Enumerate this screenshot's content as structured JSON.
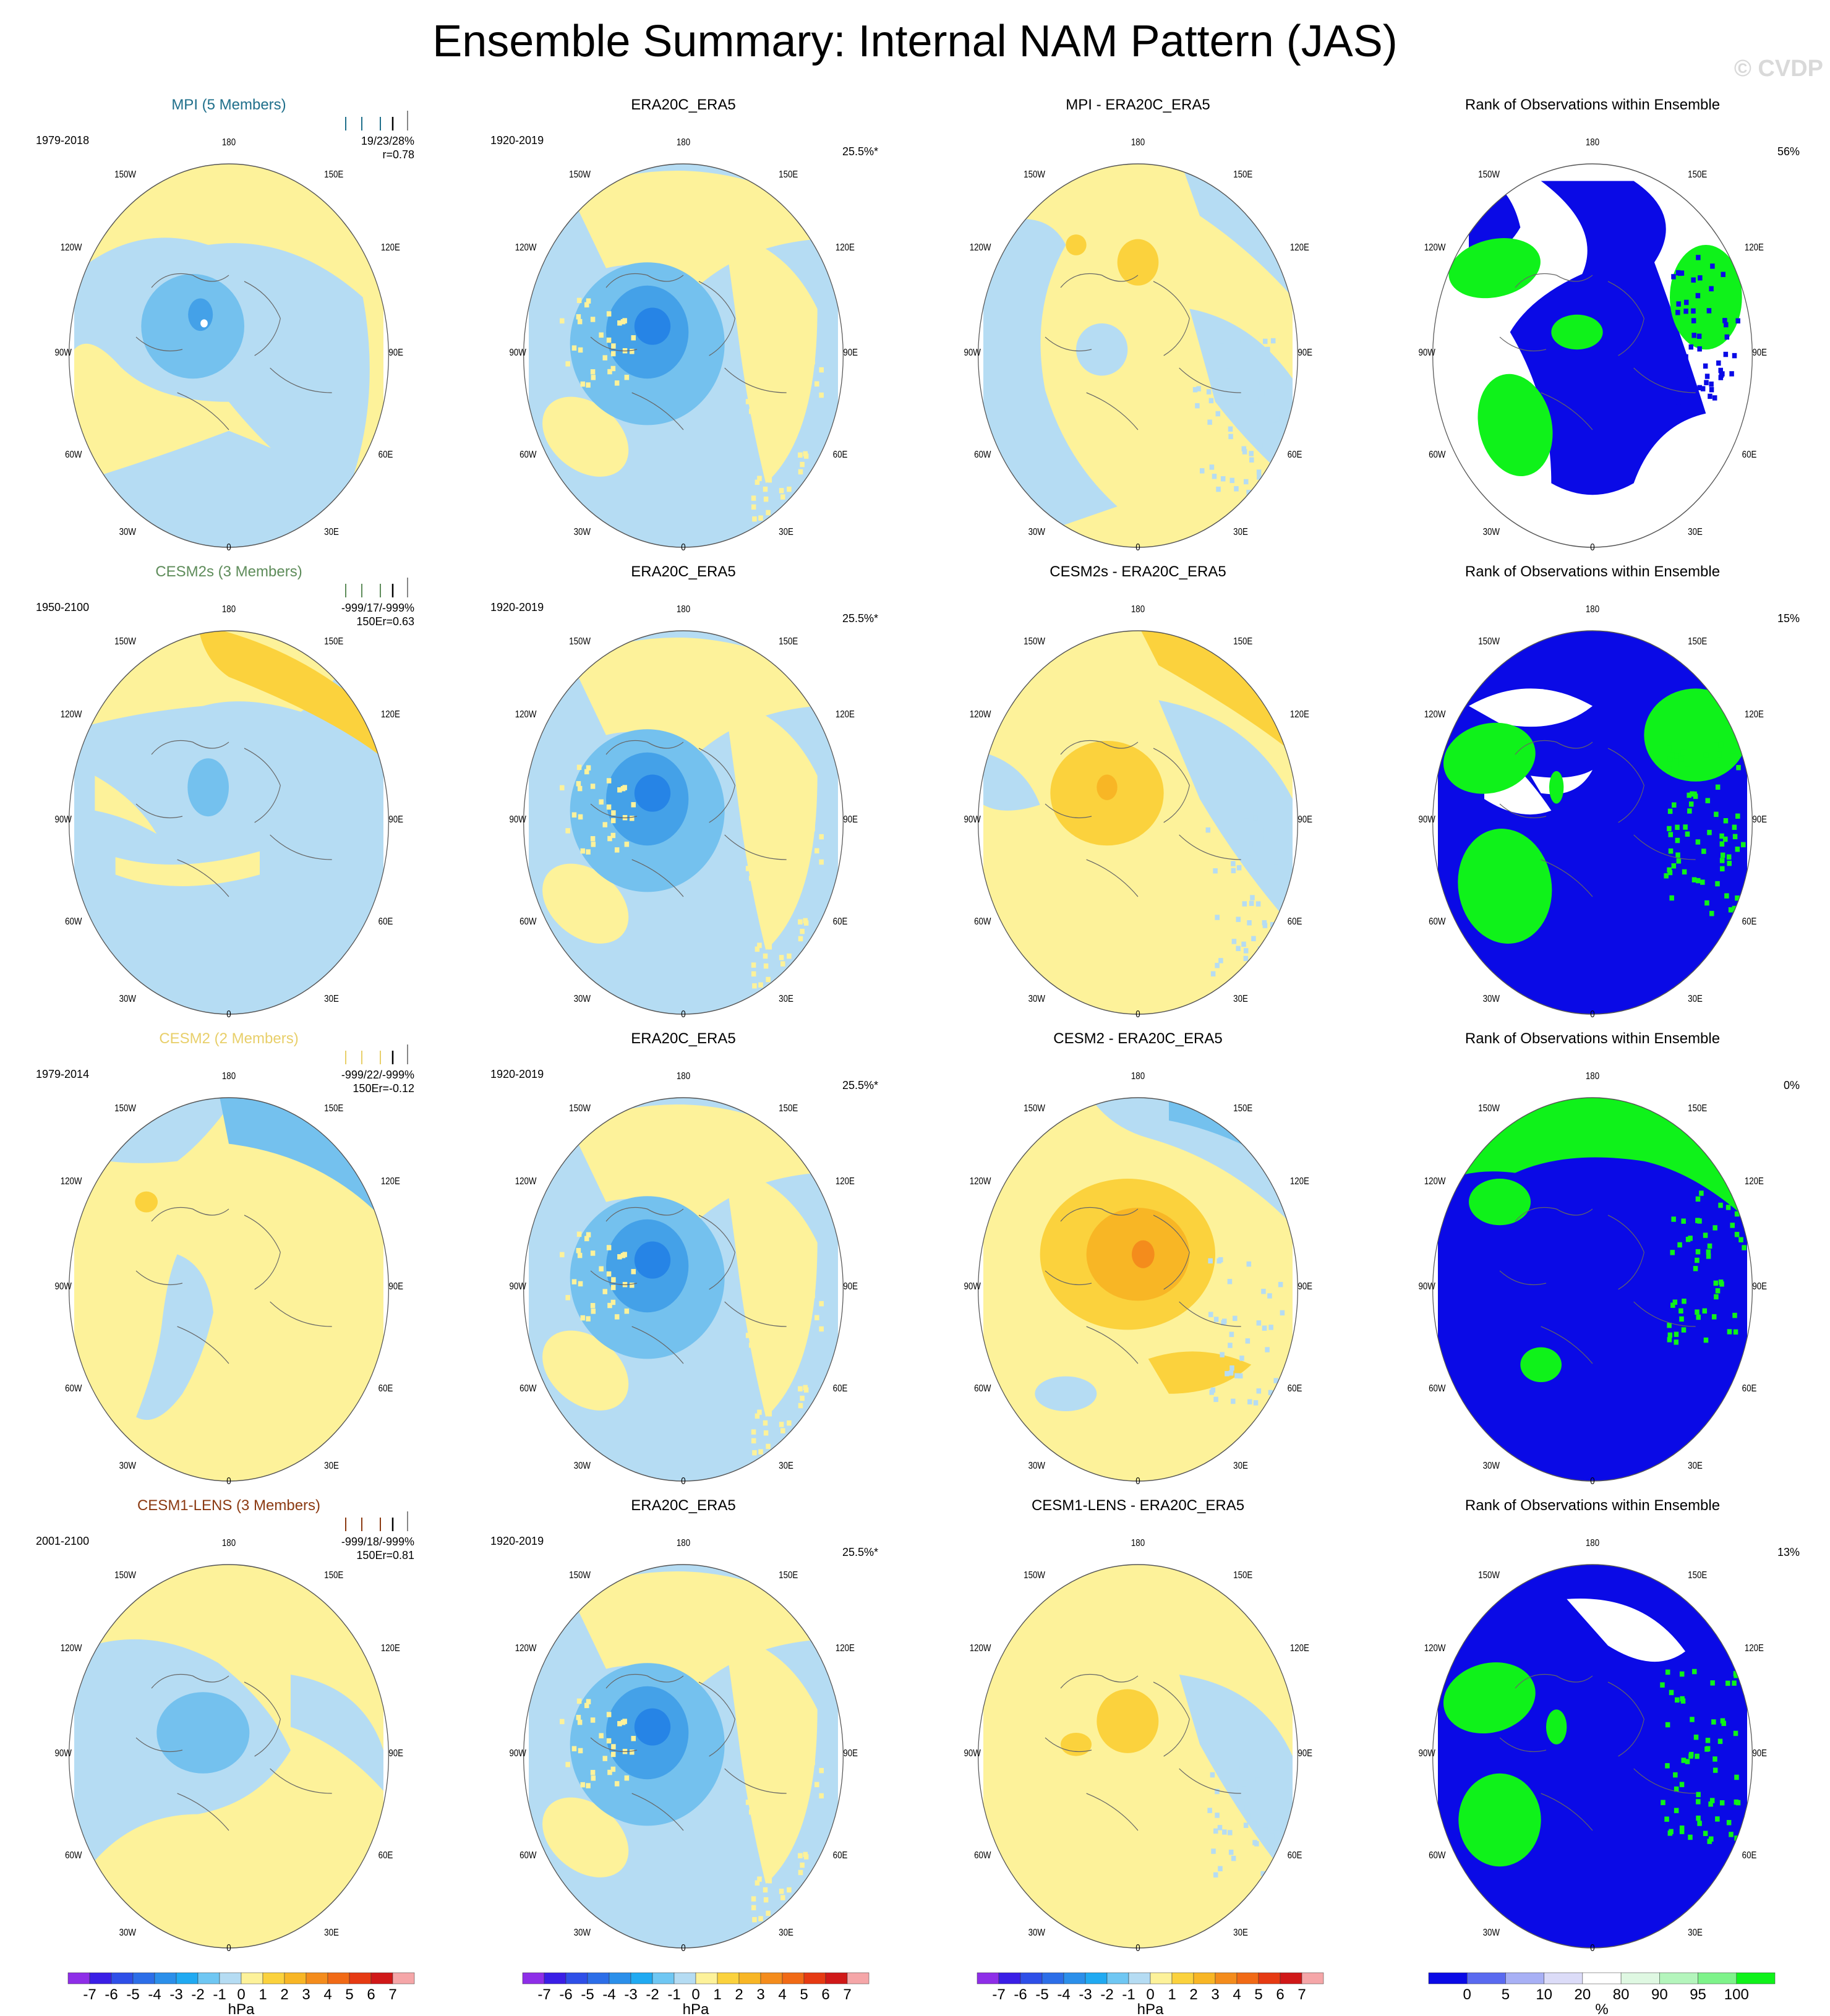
{
  "page": {
    "title": "Ensemble Summary: Internal NAM Pattern (JAS)",
    "watermark": "© CVDP"
  },
  "colors": {
    "pos1": "#fdf29a",
    "pos2": "#fbd23d",
    "pos3": "#f8b625",
    "pos4": "#f48c1c",
    "neg1": "#b5dcf3",
    "neg2": "#74c1ee",
    "neg3": "#44a1e8",
    "neg4": "#2684e6",
    "rank_low": "#0a0ae6",
    "rank_mid": "#ffffff",
    "rank_high": "#0ff21a",
    "rank_palegreen": "#e3fae8",
    "map_edge": "#555555"
  },
  "map_labels": {
    "top": "180",
    "bottom": "0",
    "w150": "150W",
    "e150": "150E",
    "w120": "120W",
    "e120": "120E",
    "w90": "90W",
    "e90": "90E",
    "w60": "60W",
    "e60": "60E",
    "w30": "30W",
    "e30": "30E"
  },
  "rows": [
    {
      "model": {
        "title": "MPI (5 Members)",
        "title_color": "#1f6f8b",
        "years": "1979-2018",
        "stat1": "19/23/28%",
        "stat2": "r=0.78",
        "tick_color": "#1f6f8b",
        "scheme": "mpi"
      },
      "obs": {
        "title": "ERA20C_ERA5",
        "years": "1920-2019",
        "pct": "25.5%*"
      },
      "diff": {
        "title": "MPI - ERA20C_ERA5",
        "scheme": "diff_mpi"
      },
      "rank": {
        "title": "Rank of Observations within Ensemble",
        "pct": "56%",
        "scheme": "rank_mpi"
      }
    },
    {
      "model": {
        "title": "CESM2s (3 Members)",
        "title_color": "#5e8c5a",
        "years": "1950-2100",
        "stat1": "-999/17/-999%",
        "stat2": "150Er=0.63",
        "tick_color": "#5e8c5a",
        "scheme": "cesm2s"
      },
      "obs": {
        "title": "ERA20C_ERA5",
        "years": "1920-2019",
        "pct": "25.5%*"
      },
      "diff": {
        "title": "CESM2s - ERA20C_ERA5",
        "scheme": "diff_cesm2s"
      },
      "rank": {
        "title": "Rank of Observations within Ensemble",
        "pct": "15%",
        "scheme": "rank_cesm2s"
      }
    },
    {
      "model": {
        "title": "CESM2 (2 Members)",
        "title_color": "#e8cf6a",
        "years": "1979-2014",
        "stat1": "-999/22/-999%",
        "stat2": "150Er=-0.12",
        "tick_color": "#e8cf6a",
        "scheme": "cesm2"
      },
      "obs": {
        "title": "ERA20C_ERA5",
        "years": "1920-2019",
        "pct": "25.5%*"
      },
      "diff": {
        "title": "CESM2 - ERA20C_ERA5",
        "scheme": "diff_cesm2"
      },
      "rank": {
        "title": "Rank of Observations within Ensemble",
        "pct": "0%",
        "scheme": "rank_cesm2"
      }
    },
    {
      "model": {
        "title": "CESM1-LENS (3 Members)",
        "title_color": "#8b3a12",
        "years": "2001-2100",
        "stat1": "-999/18/-999%",
        "stat2": "150Er=0.81",
        "tick_color": "#8b3a12",
        "scheme": "cesm1"
      },
      "obs": {
        "title": "ERA20C_ERA5",
        "years": "1920-2019",
        "pct": "25.5%*"
      },
      "diff": {
        "title": "CESM1-LENS - ERA20C_ERA5",
        "scheme": "diff_cesm1"
      },
      "rank": {
        "title": "Rank of Observations within Ensemble",
        "pct": "13%",
        "scheme": "rank_cesm1"
      }
    }
  ],
  "colorbars": {
    "hpa": {
      "labels": [
        "-7",
        "-6",
        "-5",
        "-4",
        "-3",
        "-2",
        "-1",
        "0",
        "1",
        "2",
        "3",
        "4",
        "5",
        "6",
        "7"
      ],
      "colors": [
        "#8e2ee8",
        "#3a1ee6",
        "#2e4fe8",
        "#2c6ee8",
        "#2b8fea",
        "#20aaf2",
        "#6fc7f3",
        "#b5dcf3",
        "#fdf29a",
        "#fbd23d",
        "#f8b625",
        "#f48c1c",
        "#f16a16",
        "#e63a12",
        "#d01818",
        "#f5a6a8"
      ],
      "unit": "hPa"
    },
    "rank": {
      "labels": [
        "0",
        "5",
        "10",
        "20",
        "80",
        "90",
        "95",
        "100"
      ],
      "colors": [
        "#0a0ae6",
        "#5a6af0",
        "#a8b0f5",
        "#dcdcf8",
        "#ffffff",
        "#dff8e2",
        "#b4f5bc",
        "#7ef38a",
        "#0ff21a"
      ],
      "unit": "%"
    }
  }
}
